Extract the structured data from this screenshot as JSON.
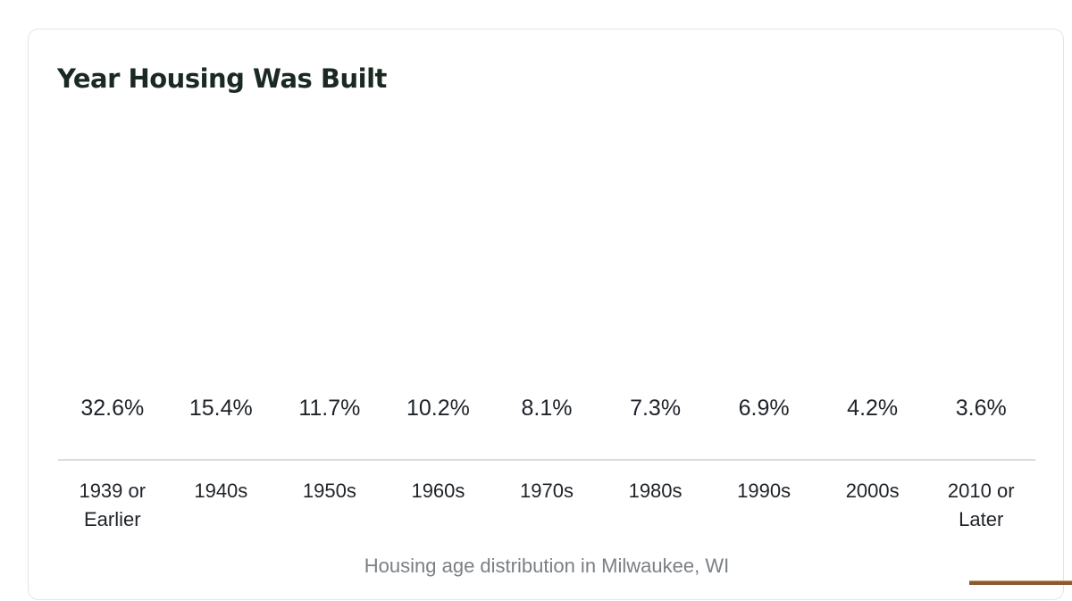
{
  "card": {
    "title": "Year Housing Was Built",
    "caption": "Housing age distribution in Milwaukee, WI"
  },
  "colors": {
    "title": "#1a2a22",
    "text": "#1f2329",
    "caption": "#7b7f86",
    "border": "#e2e4e8"
  },
  "chart_data": {
    "type": "bar",
    "title": "Year Housing Was Built",
    "categories": [
      [
        "1939 or",
        "Earlier"
      ],
      [
        "1940s"
      ],
      [
        "1950s"
      ],
      [
        "1960s"
      ],
      [
        "1970s"
      ],
      [
        "1980s"
      ],
      [
        "1990s"
      ],
      [
        "2000s"
      ],
      [
        "2010 or",
        "Later"
      ]
    ],
    "values": [
      32.6,
      15.4,
      11.7,
      10.2,
      8.1,
      7.3,
      6.9,
      4.2,
      3.6
    ],
    "value_labels": [
      "32.6%",
      "15.4%",
      "11.7%",
      "10.2%",
      "8.1%",
      "7.3%",
      "6.9%",
      "4.2%",
      "3.6%"
    ],
    "unit": "%",
    "xlabel": "",
    "ylabel": "",
    "grid": false,
    "legend": "none"
  }
}
